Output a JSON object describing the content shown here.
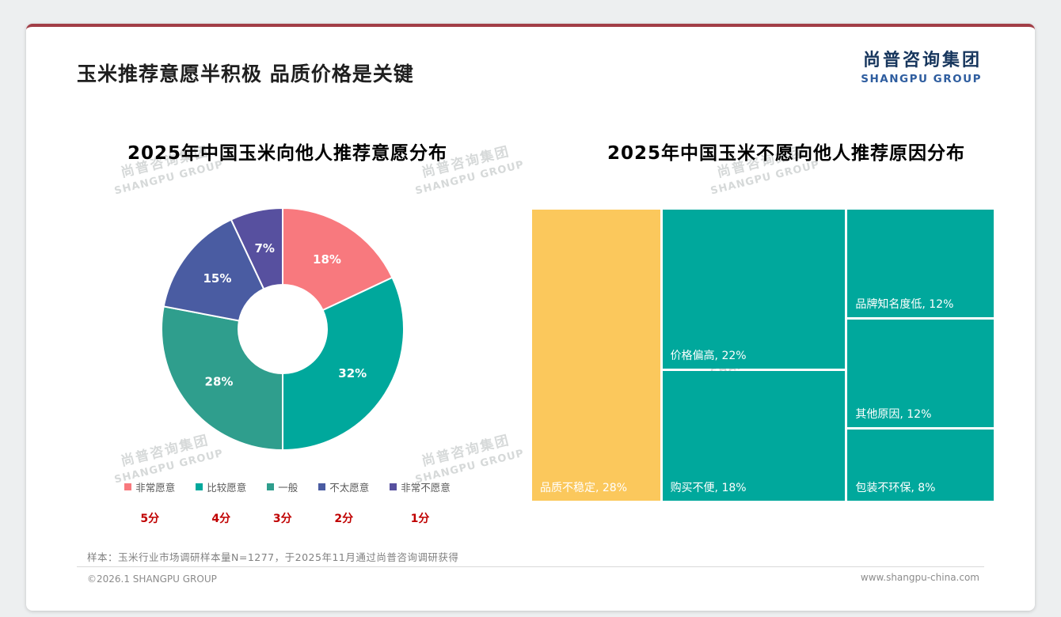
{
  "page": {
    "title": "玉米推荐意愿半积极 品质价格是关键",
    "logo_cn": "尚普咨询集团",
    "logo_en": "SHANGPU GROUP",
    "watermark_cn": "尚普咨询集团",
    "watermark_en": "SHANGPU GROUP",
    "sample_note": "样本：玉米行业市场调研样本量N=1277，于2025年11月通过尚普咨询调研获得",
    "footer_left": "©2026.1 SHANGPU GROUP",
    "footer_right": "www.shangpu-china.com",
    "accent_red": "#C00000"
  },
  "chart_data": [
    {
      "type": "pie",
      "subtype": "donut",
      "title": "2025年中国玉米向他人推荐意愿分布",
      "start_angle_deg": 0,
      "direction": "clockwise",
      "categories": [
        "非常愿意",
        "比较愿意",
        "一般",
        "不太愿意",
        "非常不愿意"
      ],
      "values": [
        18,
        32,
        28,
        15,
        7
      ],
      "data_labels": [
        "18%",
        "32%",
        "28%",
        "15%",
        "7%"
      ],
      "colors": [
        "#F8797E",
        "#00A89C",
        "#2F9E8D",
        "#4A5CA2",
        "#57509F"
      ],
      "scores": [
        "5分",
        "4分",
        "3分",
        "2分",
        "1分"
      ],
      "legend_position": "bottom"
    },
    {
      "type": "heatmap",
      "subtype": "treemap",
      "title": "2025年中国玉米不愿向他人推荐原因分布",
      "columns": [
        {
          "cells": [
            {
              "label": "品质不稳定",
              "value": 28,
              "color": "#FBC85C"
            }
          ]
        },
        {
          "cells": [
            {
              "label": "价格偏高",
              "value": 22,
              "color": "#00A89C"
            },
            {
              "label": "购买不便",
              "value": 18,
              "color": "#00A89C"
            }
          ]
        },
        {
          "cells": [
            {
              "label": "品牌知名度低",
              "value": 12,
              "color": "#00A89C"
            },
            {
              "label": "其他原因",
              "value": 12,
              "color": "#00A89C"
            },
            {
              "label": "包装不环保",
              "value": 8,
              "color": "#00A89C"
            }
          ]
        }
      ]
    }
  ]
}
